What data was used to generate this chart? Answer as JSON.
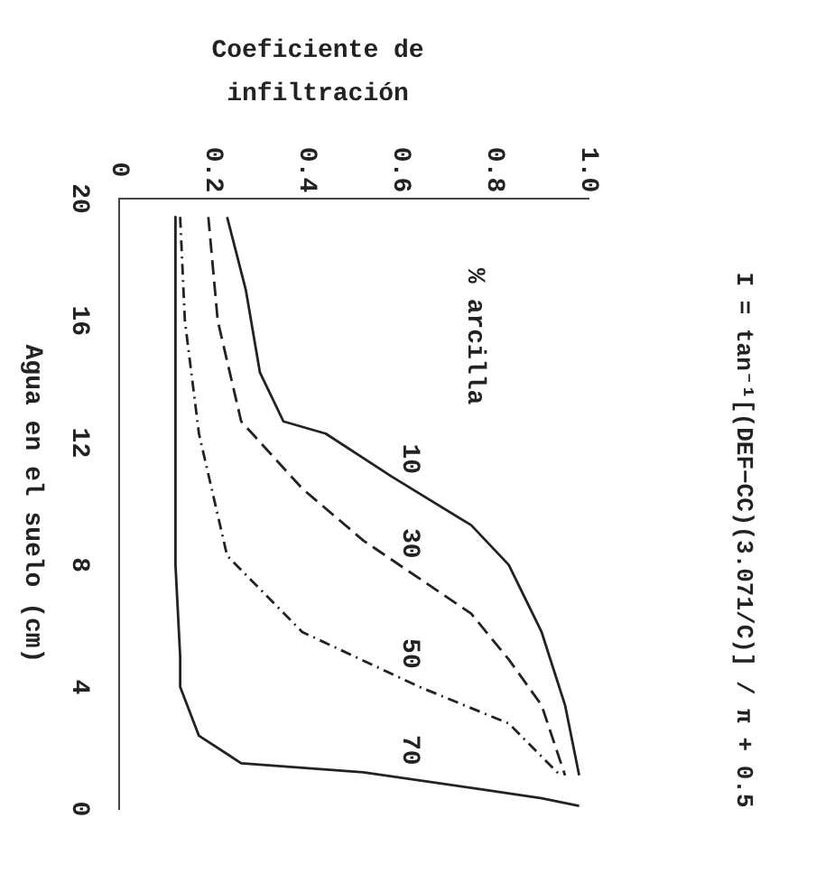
{
  "chart_data": {
    "type": "line",
    "title": "I = tan⁻¹[(DEF−CC)(3.071/C)] / π + 0.5",
    "xlabel": "Coeficiente de infiltración",
    "ylabel": "Agua en el suelo (cm)",
    "legend_title": "% arcilla",
    "xlim": [
      0,
      1
    ],
    "xticks": [
      0,
      0.2,
      0.4,
      0.6,
      0.8,
      {
        "value": 1,
        "label": "1.0"
      }
    ],
    "ylim": [
      0,
      20
    ],
    "yticks": [
      0,
      4,
      8,
      12,
      16,
      20
    ],
    "grid": false,
    "legend": false,
    "marker": "none",
    "series": [
      {
        "name": "10",
        "color": "#222222",
        "line_style": "solid",
        "x": [
          0.23,
          0.27,
          0.3,
          0.35,
          0.44,
          0.58,
          0.75,
          0.83,
          0.9,
          0.95,
          0.98
        ],
        "values": [
          19.4,
          17,
          14.3,
          12.7,
          12.3,
          10.9,
          9.3,
          8,
          5.8,
          3.4,
          1.1
        ]
      },
      {
        "name": "30",
        "color": "#222222",
        "line_style": "dashed",
        "x": [
          0.19,
          0.21,
          0.26,
          0.39,
          0.52,
          0.75,
          0.83,
          0.9,
          0.95
        ],
        "values": [
          19.4,
          16,
          12.7,
          10.5,
          8.8,
          6.4,
          4.9,
          3.4,
          1.1
        ]
      },
      {
        "name": "50",
        "color": "#222222",
        "line_style": "dotted",
        "x": [
          0.13,
          0.14,
          0.17,
          0.23,
          0.39,
          0.64,
          0.83,
          0.94
        ],
        "values": [
          19.4,
          16,
          12.3,
          8.3,
          5.8,
          4,
          2.8,
          1.1
        ]
      },
      {
        "name": "70",
        "color": "#222222",
        "line_style": "solid",
        "x": [
          0.12,
          0.12,
          0.13,
          0.13,
          0.17,
          0.26,
          0.52,
          0.77,
          0.9,
          0.98
        ],
        "values": [
          19.4,
          8,
          5,
          4,
          2.4,
          1.5,
          1.2,
          0.65,
          0.35,
          0.1
        ]
      }
    ]
  }
}
